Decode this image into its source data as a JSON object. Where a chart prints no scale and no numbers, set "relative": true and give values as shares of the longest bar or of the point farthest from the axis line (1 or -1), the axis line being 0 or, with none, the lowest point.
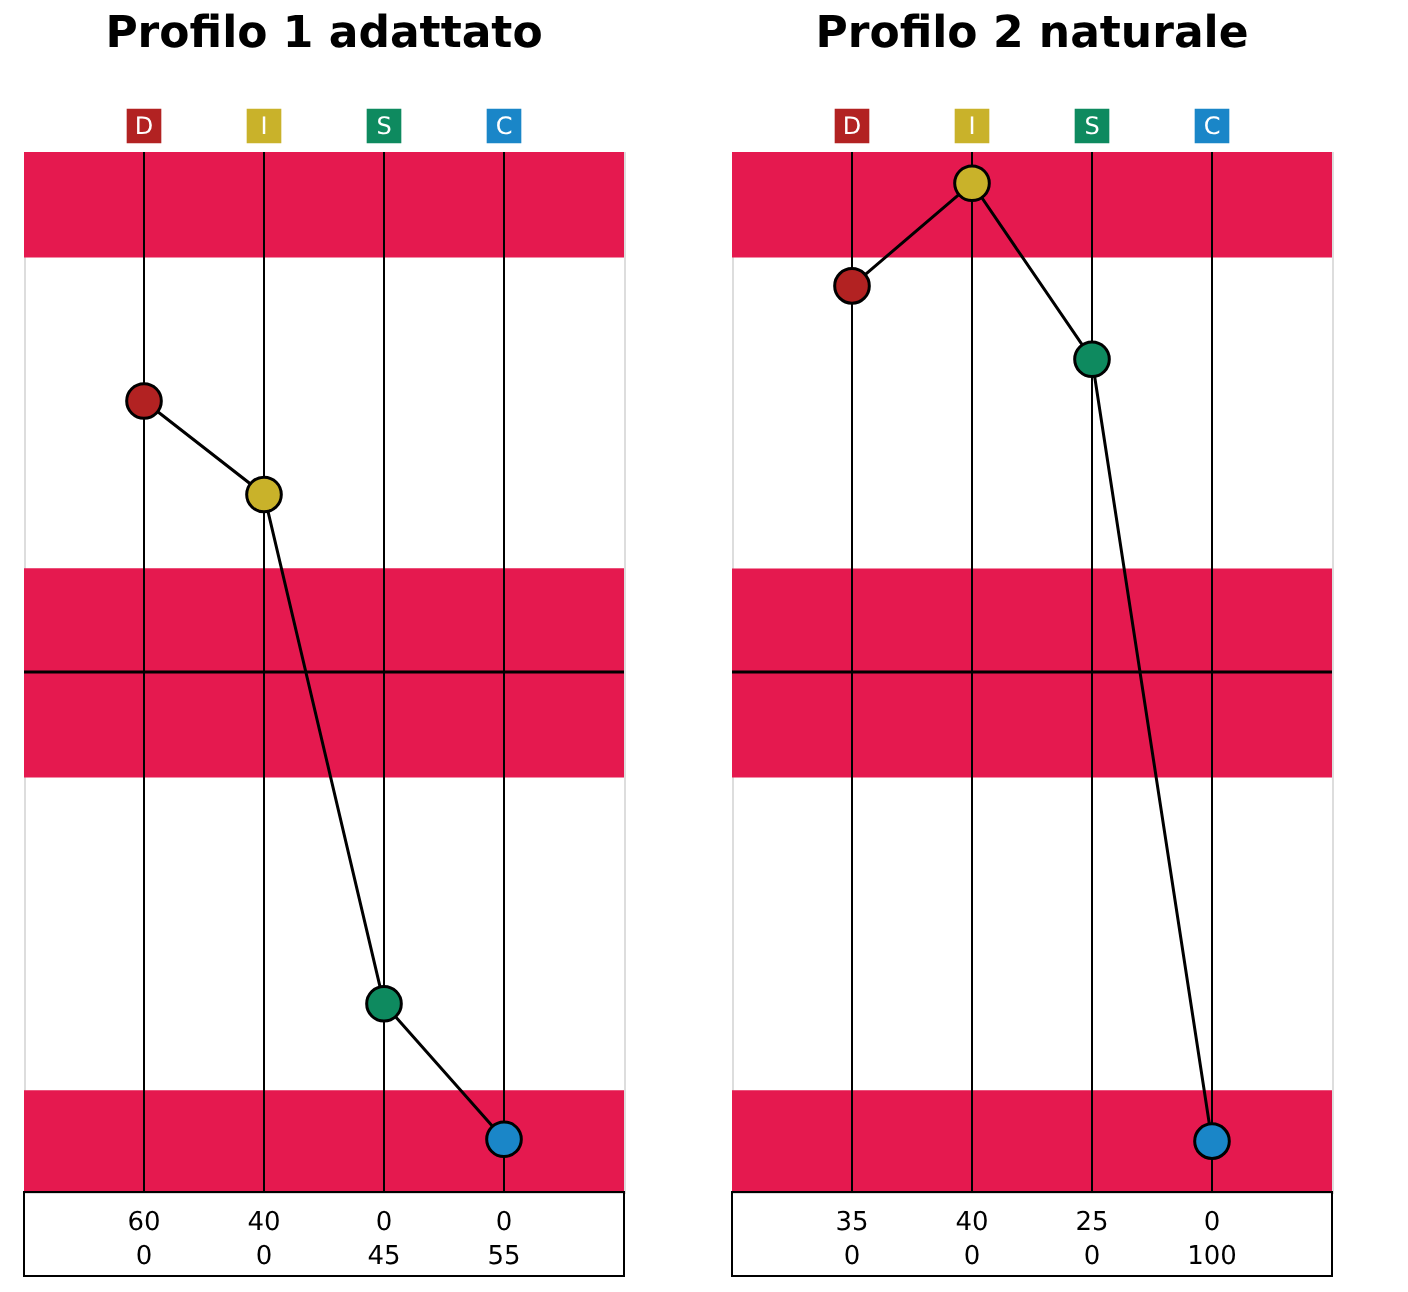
{
  "chart_data": [
    {
      "type": "line",
      "title": "Profilo 1 adattato",
      "categories": [
        "D",
        "I",
        "S",
        "C"
      ],
      "relative": true,
      "marker": "circle",
      "grid": "x",
      "series": [
        {
          "color": "#000000",
          "colors": [
            "#b22222",
            "#c9b22a",
            "#0e8a5f",
            "#1a86c8"
          ],
          "values": [
            0.58,
            0.38,
            -0.71,
            -1
          ]
        }
      ],
      "annotations": [
        "60",
        "40",
        "0",
        "0",
        "0",
        "0",
        "45",
        "55"
      ],
      "bands": [
        {
          "axis": "y",
          "from": 0.887,
          "to": 1.113,
          "color": "#e5194f"
        },
        {
          "axis": "y",
          "from": -0.226,
          "to": 0.222,
          "color": "#e5194f"
        },
        {
          "axis": "y",
          "from": -1.113,
          "to": -0.895,
          "color": "#e5194f"
        }
      ]
    },
    {
      "type": "line",
      "title": "Profilo 2 naturale",
      "categories": [
        "D",
        "I",
        "S",
        "C"
      ],
      "relative": true,
      "marker": "circle",
      "grid": "x",
      "series": [
        {
          "color": "#000000",
          "colors": [
            "#b22222",
            "#c9b22a",
            "#0e8a5f",
            "#1a86c8"
          ],
          "values": [
            0.79,
            1,
            0.64,
            -0.96
          ]
        }
      ],
      "annotations": [
        "35",
        "40",
        "25",
        "0",
        "0",
        "0",
        "0",
        "100"
      ],
      "bands": [
        {
          "axis": "y",
          "from": 0.848,
          "to": 1.064,
          "color": "#e5194f"
        },
        {
          "axis": "y",
          "from": -0.216,
          "to": 0.212,
          "color": "#e5194f"
        },
        {
          "axis": "y",
          "from": -1.064,
          "to": -0.856,
          "color": "#e5194f"
        }
      ]
    }
  ]
}
